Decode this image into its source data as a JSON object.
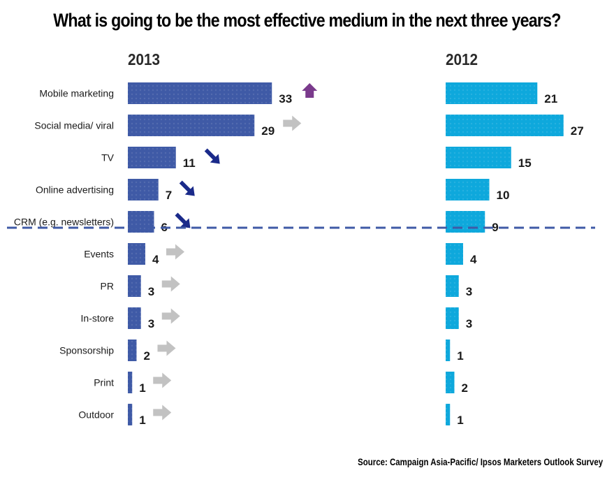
{
  "chart_data": {
    "type": "bar",
    "orientation": "horizontal",
    "title": "What is going to be the most effective medium in the next three years?",
    "source": "Source: Campaign Asia-Pacific/ Ipsos Marketers Outlook Survey",
    "categories": [
      "Mobile marketing",
      "Social media/ viral",
      "TV",
      "Online advertising",
      "CRM (e.g. newsletters)",
      "Events",
      "PR",
      "In-store",
      "Sponsorship",
      "Print",
      "Outdoor"
    ],
    "series": [
      {
        "name": "2013",
        "color": "#3f5aa6",
        "values": [
          33,
          29,
          11,
          7,
          6,
          4,
          3,
          3,
          2,
          1,
          1
        ],
        "trend": [
          "up",
          "flat",
          "down",
          "down",
          "down",
          "flat",
          "flat",
          "flat",
          "flat",
          "flat",
          "flat"
        ]
      },
      {
        "name": "2012",
        "color": "#0ea8dc",
        "values": [
          21,
          27,
          15,
          10,
          9,
          4,
          3,
          3,
          1,
          2,
          1
        ]
      }
    ],
    "divider_after_index": 4,
    "trend_colors": {
      "up": "#7a3a8c",
      "down": "#1a2a8a",
      "flat": "#c2c2c2"
    },
    "divider_color": "#3f5aa6",
    "xlim": [
      0,
      33
    ],
    "grid": false,
    "legend": "none"
  }
}
